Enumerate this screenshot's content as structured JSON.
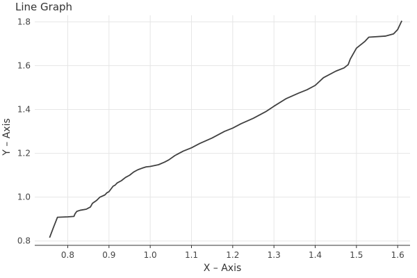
{
  "chart_data": {
    "type": "line",
    "title": "Line Graph",
    "xlabel": "X – Axis",
    "ylabel": "Y – Axis",
    "xlim": [
      0.72,
      1.63
    ],
    "ylim": [
      0.78,
      1.83
    ],
    "xticks": [
      0.8,
      0.9,
      1.0,
      1.1,
      1.2,
      1.3,
      1.4,
      1.5,
      1.6
    ],
    "xtick_labels": [
      "0.8",
      "0.9",
      "1.0",
      "1.1",
      "1.2",
      "1.3",
      "1.4",
      "1.5",
      "1.6"
    ],
    "yticks": [
      0.8,
      1.0,
      1.2,
      1.4,
      1.6,
      1.8
    ],
    "ytick_labels": [
      "0.8",
      "1.0",
      "1.2",
      "1.4",
      "1.6",
      "1.8"
    ],
    "grid": true,
    "series": [
      {
        "color": "#404040",
        "x": [
          0.756,
          0.765,
          0.775,
          0.8,
          0.815,
          0.818,
          0.822,
          0.83,
          0.845,
          0.855,
          0.86,
          0.87,
          0.878,
          0.89,
          0.895,
          0.9,
          0.91,
          0.915,
          0.92,
          0.93,
          0.94,
          0.95,
          0.96,
          0.97,
          0.98,
          0.99,
          1.0,
          1.02,
          1.035,
          1.045,
          1.06,
          1.08,
          1.1,
          1.12,
          1.15,
          1.18,
          1.2,
          1.22,
          1.25,
          1.28,
          1.3,
          1.33,
          1.36,
          1.38,
          1.4,
          1.42,
          1.45,
          1.47,
          1.48,
          1.485,
          1.5,
          1.52,
          1.53,
          1.57,
          1.59,
          1.6,
          1.61
        ],
        "y": [
          0.815,
          0.86,
          0.908,
          0.91,
          0.912,
          0.925,
          0.935,
          0.94,
          0.945,
          0.955,
          0.972,
          0.985,
          1.0,
          1.01,
          1.02,
          1.025,
          1.05,
          1.055,
          1.065,
          1.075,
          1.09,
          1.1,
          1.115,
          1.125,
          1.132,
          1.138,
          1.14,
          1.148,
          1.16,
          1.17,
          1.19,
          1.21,
          1.225,
          1.245,
          1.27,
          1.3,
          1.315,
          1.335,
          1.36,
          1.39,
          1.415,
          1.45,
          1.475,
          1.49,
          1.51,
          1.545,
          1.575,
          1.59,
          1.605,
          1.63,
          1.68,
          1.71,
          1.73,
          1.735,
          1.745,
          1.765,
          1.805
        ]
      }
    ]
  }
}
